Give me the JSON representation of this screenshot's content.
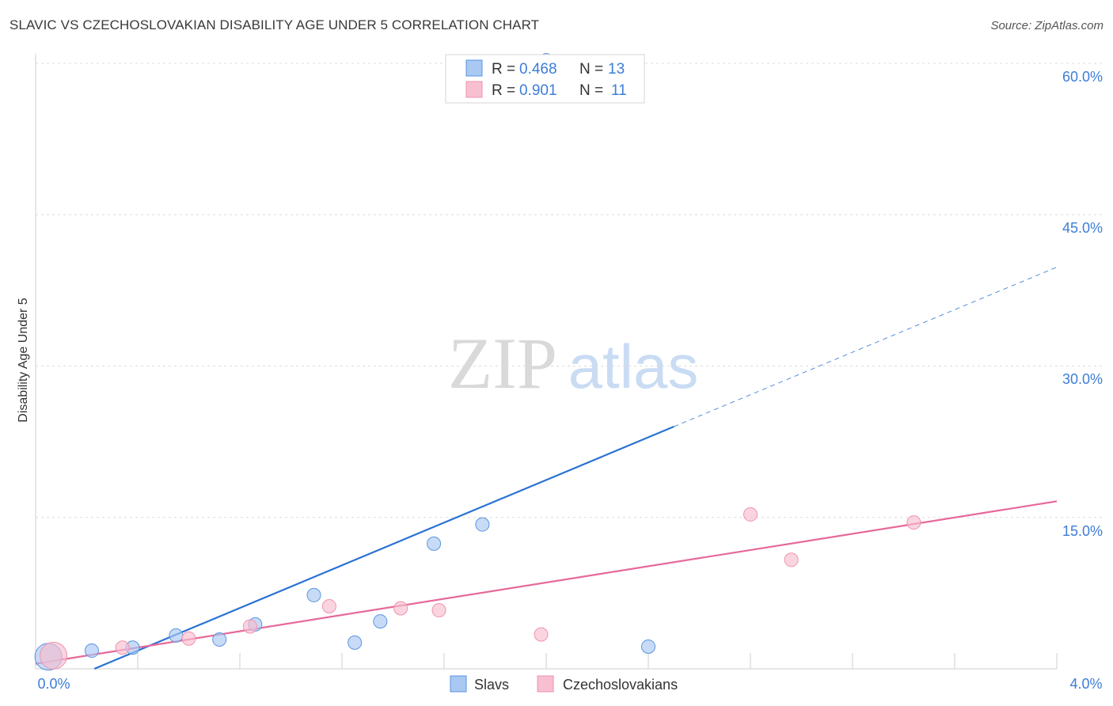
{
  "title": "SLAVIC VS CZECHOSLOVAKIAN DISABILITY AGE UNDER 5 CORRELATION CHART",
  "source": "Source: ZipAtlas.com",
  "watermark": {
    "zip": "ZIP",
    "atlas": "atlas"
  },
  "colors": {
    "blue_fill": "#a9c8f2",
    "blue_stroke": "#5b95df",
    "blue_line": "#2a72d3",
    "pink_fill": "#f8bfd0",
    "pink_stroke": "#ee93ae",
    "pink_line": "#e6699a",
    "grid": "#dcdcdc",
    "axis_text": "#3d7dd8"
  },
  "legend": {
    "items": [
      {
        "r_label": "R = ",
        "r_value": "0.468",
        "n_label": "N = ",
        "n_value": "13"
      },
      {
        "r_label": "R = ",
        "r_value": "0.901",
        "n_label": "N = ",
        "n_value": "11"
      }
    ]
  },
  "bottom_legend": [
    "Slavs",
    "Czechoslovakians"
  ],
  "chart_data": {
    "type": "scatter",
    "title": "SLAVIC VS CZECHOSLOVAKIAN DISABILITY AGE UNDER 5 CORRELATION CHART",
    "xlabel": "",
    "ylabel": "Disability Age Under 5",
    "xlim": [
      0.0,
      4.0
    ],
    "ylim": [
      0.0,
      60.0
    ],
    "x_tick_labels": [
      "0.0%",
      "4.0%"
    ],
    "y_ticks": [
      15.0,
      30.0,
      45.0,
      60.0
    ],
    "y_tick_labels": [
      "15.0%",
      "30.0%",
      "45.0%",
      "60.0%"
    ],
    "grid": true,
    "series": [
      {
        "name": "Slavs",
        "R": 0.468,
        "N": 13,
        "points": [
          {
            "x": 0.05,
            "y": 1.2,
            "big": true
          },
          {
            "x": 0.22,
            "y": 1.8
          },
          {
            "x": 0.38,
            "y": 2.1
          },
          {
            "x": 0.55,
            "y": 3.3
          },
          {
            "x": 0.72,
            "y": 2.9
          },
          {
            "x": 0.86,
            "y": 4.4
          },
          {
            "x": 1.09,
            "y": 7.3
          },
          {
            "x": 1.25,
            "y": 2.6
          },
          {
            "x": 1.35,
            "y": 4.7
          },
          {
            "x": 1.56,
            "y": 12.4
          },
          {
            "x": 1.75,
            "y": 14.3
          },
          {
            "x": 2.0,
            "y": 60.3
          },
          {
            "x": 2.4,
            "y": 2.2
          }
        ],
        "trend": {
          "x0": 0.23,
          "y0": 0.0,
          "x1": 2.5,
          "y1": 24.0,
          "dash_to_x": 4.0,
          "dash_to_y": 39.8
        }
      },
      {
        "name": "Czechoslovakians",
        "R": 0.901,
        "N": 11,
        "points": [
          {
            "x": 0.07,
            "y": 1.3,
            "big": true
          },
          {
            "x": 0.34,
            "y": 2.1
          },
          {
            "x": 0.6,
            "y": 3.0
          },
          {
            "x": 0.84,
            "y": 4.2
          },
          {
            "x": 1.15,
            "y": 6.2
          },
          {
            "x": 1.43,
            "y": 6.0
          },
          {
            "x": 1.58,
            "y": 5.8
          },
          {
            "x": 1.98,
            "y": 3.4
          },
          {
            "x": 2.8,
            "y": 15.3
          },
          {
            "x": 2.96,
            "y": 10.8
          },
          {
            "x": 3.44,
            "y": 14.5
          }
        ],
        "trend": {
          "x0": 0.0,
          "y0": 0.5,
          "x1": 4.0,
          "y1": 16.6
        }
      }
    ]
  }
}
